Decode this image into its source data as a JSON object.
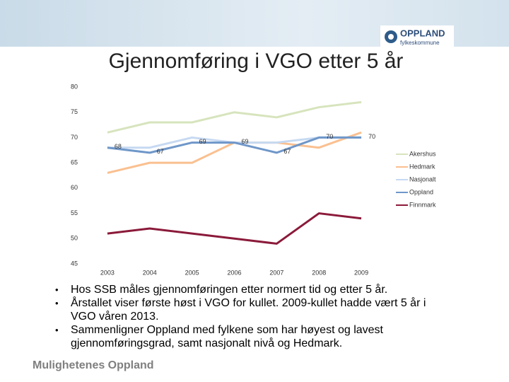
{
  "logo": {
    "name": "OPPLAND",
    "subtitle": "fylkeskommune"
  },
  "chart_data": {
    "type": "line",
    "title": "Gjennomføring i VGO etter 5 år",
    "categories": [
      "2003",
      "2004",
      "2005",
      "2006",
      "2007",
      "2008",
      "2009"
    ],
    "series": [
      {
        "name": "Akershus",
        "color": "#d7e4bd",
        "values": [
          71,
          73,
          73,
          75,
          74,
          76,
          77
        ]
      },
      {
        "name": "Hedmark",
        "color": "#fac090",
        "values": [
          63,
          65,
          65,
          69,
          69,
          68,
          71
        ]
      },
      {
        "name": "Nasjonalt",
        "color": "#c6d9f1",
        "values": [
          68,
          68,
          70,
          69,
          69,
          70,
          70
        ]
      },
      {
        "name": "Oppland",
        "color": "#6f97c9",
        "values": [
          68,
          67,
          69,
          69,
          67,
          70,
          70
        ],
        "show_labels": true
      },
      {
        "name": "Finnmark",
        "color": "#8b1a3a",
        "values": [
          51,
          52,
          51,
          50,
          49,
          55,
          54
        ]
      }
    ],
    "ylim": [
      45,
      80
    ],
    "yticks": [
      45,
      50,
      55,
      60,
      65,
      70,
      75,
      80
    ],
    "grid": false,
    "legend": "right"
  },
  "bullets": [
    "Hos SSB måles gjennomføringen etter normert tid og etter 5 år.",
    "Årstallet viser første høst i VGO for kullet. 2009-kullet hadde vært 5 år i VGO våren 2013.",
    "Sammenligner Oppland med fylkene som har høyest og lavest gjennomføringsgrad, samt nasjonalt nivå og Hedmark."
  ],
  "footer": "Mulighetenes Oppland"
}
